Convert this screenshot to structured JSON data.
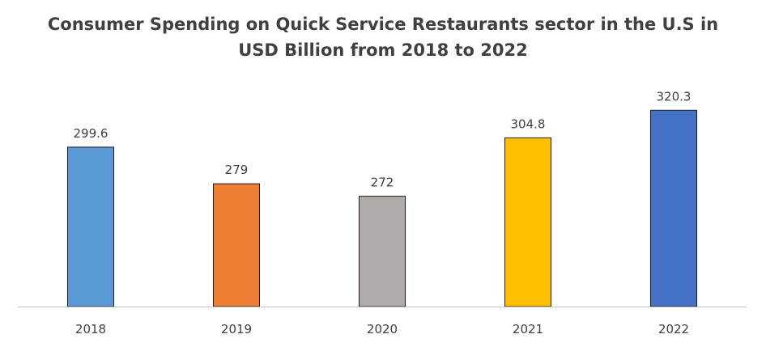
{
  "chart_data": {
    "type": "bar",
    "title_lines": [
      "Consumer Spending on Quick Service Restaurants sector in the U.S in",
      "USD Billion from 2018 to 2022"
    ],
    "categories": [
      "2018",
      "2019",
      "2020",
      "2021",
      "2022"
    ],
    "values": [
      299.6,
      279,
      272,
      304.8,
      320.3
    ],
    "value_labels": [
      "299.6",
      "279",
      "272",
      "304.8",
      "320.3"
    ],
    "colors": [
      "#5B9BD5",
      "#ED7D31",
      "#B0AAA8",
      "#FFC000",
      "#4472C4"
    ],
    "axis_color": "#BFBFBF",
    "xlabel": "",
    "ylabel": "",
    "grid": false,
    "legend": "none"
  }
}
